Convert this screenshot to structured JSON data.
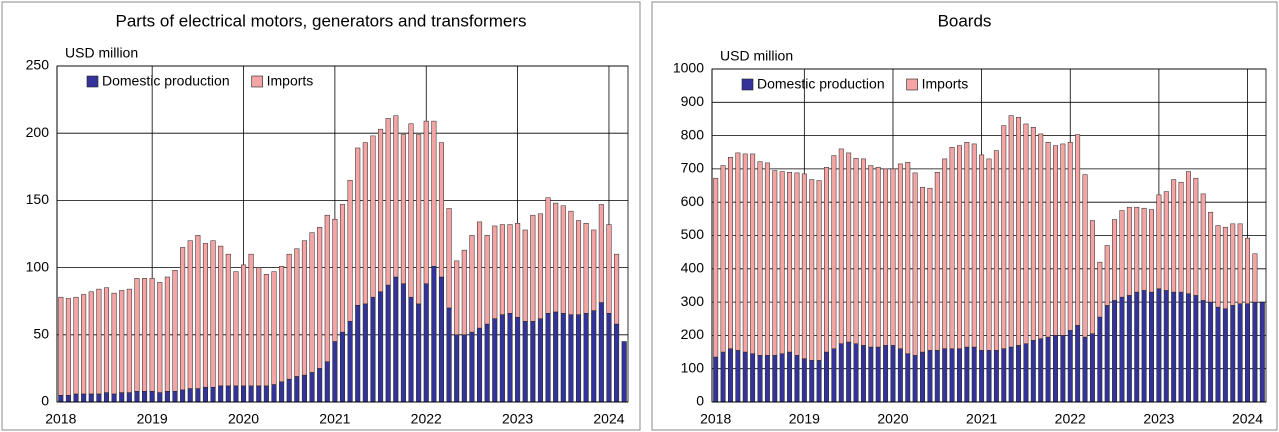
{
  "chart_data": [
    {
      "type": "bar",
      "stacked": true,
      "title": "Parts of electrical motors, generators and transformers",
      "y_label": "USD million",
      "categories": [
        "2018",
        null,
        null,
        null,
        null,
        null,
        null,
        null,
        null,
        null,
        null,
        null,
        "2019",
        null,
        null,
        null,
        null,
        null,
        null,
        null,
        null,
        null,
        null,
        null,
        "2020",
        null,
        null,
        null,
        null,
        null,
        null,
        null,
        null,
        null,
        null,
        null,
        "2021",
        null,
        null,
        null,
        null,
        null,
        null,
        null,
        null,
        null,
        null,
        null,
        "2022",
        null,
        null,
        null,
        null,
        null,
        null,
        null,
        null,
        null,
        null,
        null,
        "2023",
        null,
        null,
        null,
        null,
        null,
        null,
        null,
        null,
        null,
        null,
        null,
        "2024",
        null,
        null
      ],
      "series": [
        {
          "name": "Domestic production",
          "color": "#333399",
          "values": [
            5,
            5,
            6,
            6,
            6,
            6,
            7,
            6,
            7,
            7,
            8,
            8,
            8,
            7,
            8,
            8,
            9,
            10,
            10,
            11,
            11,
            12,
            12,
            12,
            12,
            12,
            12,
            12,
            13,
            15,
            17,
            19,
            20,
            22,
            25,
            30,
            45,
            52,
            60,
            72,
            73,
            78,
            82,
            87,
            93,
            88,
            78,
            73,
            88,
            101,
            93,
            70,
            50,
            50,
            52,
            55,
            58,
            62,
            65,
            66,
            63,
            60,
            60,
            62,
            66,
            67,
            66,
            65,
            65,
            66,
            68,
            74,
            66,
            58,
            45
          ]
        },
        {
          "name": "Imports",
          "color": "#f4a4a4",
          "values": [
            73,
            72,
            72,
            74,
            76,
            78,
            78,
            75,
            76,
            77,
            84,
            84,
            84,
            82,
            85,
            90,
            106,
            110,
            114,
            107,
            109,
            104,
            98,
            85,
            90,
            98,
            88,
            83,
            84,
            86,
            93,
            95,
            100,
            104,
            105,
            109,
            91,
            95,
            105,
            117,
            120,
            120,
            121,
            124,
            120,
            111,
            129,
            126,
            121,
            108,
            100,
            74,
            55,
            63,
            72,
            79,
            66,
            69,
            67,
            66,
            70,
            68,
            79,
            78,
            86,
            81,
            80,
            77,
            70,
            67,
            60,
            73,
            66,
            52,
            null
          ]
        }
      ],
      "ylim": [
        0,
        250
      ],
      "yticks": [
        0,
        50,
        100,
        150,
        200,
        250
      ],
      "grid": true,
      "legend": "top-left"
    },
    {
      "type": "bar",
      "stacked": true,
      "title": "Boards",
      "y_label": "USD million",
      "categories": [
        "2018",
        null,
        null,
        null,
        null,
        null,
        null,
        null,
        null,
        null,
        null,
        null,
        "2019",
        null,
        null,
        null,
        null,
        null,
        null,
        null,
        null,
        null,
        null,
        null,
        "2020",
        null,
        null,
        null,
        null,
        null,
        null,
        null,
        null,
        null,
        null,
        null,
        "2021",
        null,
        null,
        null,
        null,
        null,
        null,
        null,
        null,
        null,
        null,
        null,
        "2022",
        null,
        null,
        null,
        null,
        null,
        null,
        null,
        null,
        null,
        null,
        null,
        "2023",
        null,
        null,
        null,
        null,
        null,
        null,
        null,
        null,
        null,
        null,
        null,
        "2024",
        null,
        null
      ],
      "series": [
        {
          "name": "Domestic production",
          "color": "#333399",
          "values": [
            135,
            150,
            160,
            155,
            150,
            145,
            140,
            140,
            140,
            145,
            150,
            140,
            130,
            125,
            125,
            150,
            160,
            175,
            180,
            175,
            170,
            165,
            165,
            170,
            170,
            160,
            145,
            140,
            150,
            155,
            155,
            160,
            160,
            160,
            165,
            165,
            155,
            155,
            155,
            160,
            165,
            170,
            175,
            185,
            190,
            195,
            200,
            200,
            215,
            230,
            195,
            205,
            255,
            290,
            305,
            315,
            320,
            330,
            335,
            330,
            340,
            335,
            330,
            330,
            325,
            320,
            305,
            300,
            285,
            280,
            290,
            295,
            295,
            300,
            300
          ]
        },
        {
          "name": "Imports",
          "color": "#f4a4a4",
          "values": [
            537,
            560,
            575,
            593,
            595,
            600,
            582,
            578,
            555,
            547,
            540,
            548,
            555,
            543,
            540,
            555,
            580,
            585,
            568,
            557,
            560,
            545,
            540,
            530,
            530,
            555,
            575,
            548,
            495,
            487,
            535,
            570,
            605,
            610,
            615,
            610,
            587,
            575,
            600,
            670,
            695,
            685,
            660,
            640,
            615,
            585,
            570,
            575,
            565,
            573,
            488,
            340,
            165,
            180,
            243,
            260,
            265,
            255,
            247,
            248,
            282,
            297,
            338,
            330,
            367,
            352,
            320,
            270,
            245,
            245,
            245,
            240,
            197,
            145,
            null
          ]
        }
      ],
      "ylim": [
        0,
        1000
      ],
      "yticks": [
        0,
        100,
        200,
        300,
        400,
        500,
        600,
        700,
        800,
        900,
        1000
      ],
      "grid": true,
      "legend": "top-left"
    }
  ]
}
